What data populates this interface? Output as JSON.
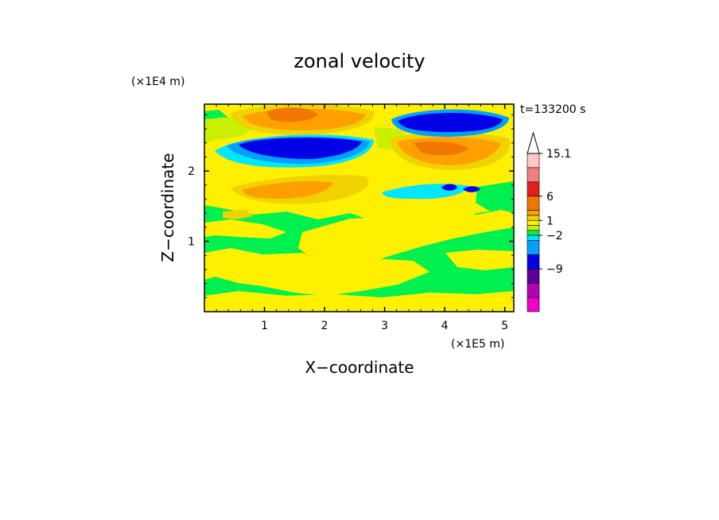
{
  "chart_data": {
    "type": "heatmap",
    "title": "zonal velocity",
    "xlabel": "X−coordinate",
    "ylabel": "Z−coordinate",
    "x_multiplier": "(×1E5 m)",
    "y_multiplier": "(×1E4 m)",
    "time_label": "t=133200 s",
    "xlim": [
      0,
      5.15
    ],
    "ylim": [
      0,
      2.95
    ],
    "xticks": [
      "1",
      "2",
      "3",
      "4",
      "5"
    ],
    "xtick_values": [
      1,
      2,
      3,
      4,
      5
    ],
    "yticks": [
      "1",
      "2"
    ],
    "ytick_values": [
      1,
      2
    ],
    "colorbar": {
      "labels": [
        "15.1",
        "6",
        "1",
        "−2",
        "−9"
      ],
      "label_values": [
        15.1,
        6,
        1,
        -2,
        -9
      ],
      "levels_top_to_bottom": [
        15.1,
        12,
        9,
        6,
        3,
        2,
        1,
        0,
        -1,
        -2,
        -3,
        -6,
        -9,
        -12,
        -15
      ],
      "colors_top_to_bottom": [
        "#ffc8c8",
        "#f08080",
        "#e61e1e",
        "#f07800",
        "#ffa000",
        "#f0d200",
        "#fff000",
        "#c8f000",
        "#00f050",
        "#00e6ff",
        "#00a0ff",
        "#0000e6",
        "#5a0096",
        "#b400b4",
        "#f000c8"
      ],
      "extend": "max"
    },
    "field_colors": {
      "background": "#00f050",
      "yellow": "#fff000",
      "light_green": "#c8f000",
      "gold": "#f0d200",
      "orange": "#ffa000",
      "dark_orange": "#f07800",
      "light_blue": "#00a0ff",
      "cyan": "#00e6ff",
      "deep_blue": "#0000e6"
    },
    "grid": false,
    "legend": "colorbar-right"
  }
}
